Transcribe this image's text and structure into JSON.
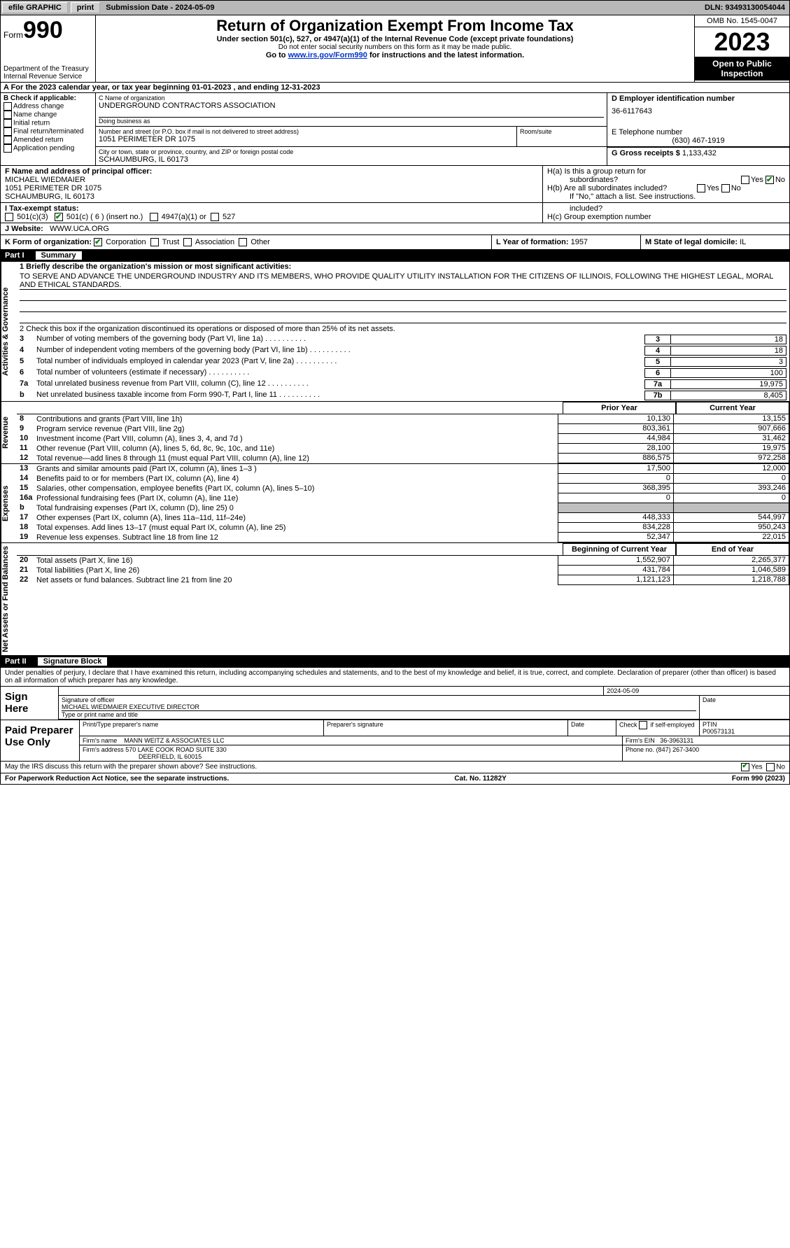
{
  "topbar": {
    "efile": "efile GRAPHIC",
    "print": "print",
    "submission": "Submission Date - 2024-05-09",
    "dln": "DLN: 93493130054044"
  },
  "header": {
    "form_prefix": "Form",
    "form_number": "990",
    "title": "Return of Organization Exempt From Income Tax",
    "subtitle": "Under section 501(c), 527, or 4947(a)(1) of the Internal Revenue Code (except private foundations)",
    "ssn_note": "Do not enter social security numbers on this form as it may be made public.",
    "goto_prefix": "Go to ",
    "goto_link": "www.irs.gov/Form990",
    "goto_suffix": " for instructions and the latest information.",
    "dept": "Department of the Treasury",
    "irs": "Internal Revenue Service",
    "omb": "OMB No. 1545-0047",
    "year": "2023",
    "inspect": "Open to Public Inspection"
  },
  "rowA": "A For the 2023 calendar year, or tax year beginning 01-01-2023   , and ending 12-31-2023",
  "boxB": {
    "label": "B Check if applicable:",
    "items": [
      "Address change",
      "Name change",
      "Initial return",
      "Final return/terminated",
      "Amended return",
      "Application pending"
    ]
  },
  "boxC": {
    "name_label": "C Name of organization",
    "name": "UNDERGROUND CONTRACTORS ASSOCIATION",
    "dba_label": "Doing business as",
    "dba": "",
    "street_label": "Number and street (or P.O. box if mail is not delivered to street address)",
    "street": "1051 PERIMETER DR 1075",
    "room_label": "Room/suite",
    "city_label": "City or town, state or province, country, and ZIP or foreign postal code",
    "city": "SCHAUMBURG, IL  60173"
  },
  "boxD": {
    "label": "D Employer identification number",
    "ein": "36-6117643"
  },
  "boxE": {
    "label": "E Telephone number",
    "phone": "(630) 467-1919"
  },
  "boxG": {
    "label": "G Gross receipts $",
    "amount": "1,133,432"
  },
  "boxF": {
    "label": "F Name and address of principal officer:",
    "name": "MICHAEL WIEDMAIER",
    "addr1": "1051 PERIMETER DR 1075",
    "addr2": "SCHAUMBURG, IL  60173"
  },
  "boxH": {
    "a": "H(a)  Is this a group return for",
    "a2": "subordinates?",
    "b": "H(b)  Are all subordinates included?",
    "bnote": "If \"No,\" attach a list. See instructions.",
    "c": "H(c)  Group exemption number",
    "yes": "Yes",
    "no": "No"
  },
  "boxI": {
    "label": "I   Tax-exempt status:",
    "opt1": "501(c)(3)",
    "opt2": "501(c) ( 6 ) (insert no.)",
    "opt3": "4947(a)(1) or",
    "opt4": "527"
  },
  "boxJ_label": "J   Website:",
  "boxJ_site": "WWW.UCA.ORG",
  "boxK": {
    "label": "K Form of organization:",
    "corp": "Corporation",
    "trust": "Trust",
    "assoc": "Association",
    "other": "Other"
  },
  "boxL": {
    "label": "L Year of formation:",
    "val": "1957"
  },
  "boxM": {
    "label": "M State of legal domicile:",
    "val": "IL"
  },
  "partI": {
    "num": "Part I",
    "title": "Summary"
  },
  "summary": {
    "vlabels": {
      "ag": "Activities & Governance",
      "rev": "Revenue",
      "exp": "Expenses",
      "net": "Net Assets or Fund Balances"
    },
    "line1_label": "1   Briefly describe the organization's mission or most significant activities:",
    "mission": "TO SERVE AND ADVANCE THE UNDERGROUND INDUSTRY AND ITS MEMBERS, WHO PROVIDE QUALITY UTILITY INSTALLATION FOR THE CITIZENS OF ILLINOIS, FOLLOWING THE HIGHEST LEGAL, MORAL AND ETHICAL STANDARDS.",
    "line2": "2   Check this box       if the organization discontinued its operations or disposed of more than 25% of its net assets.",
    "rows_ag": [
      {
        "n": "3",
        "t": "Number of voting members of the governing body (Part VI, line 1a)",
        "box": "3",
        "v": "18"
      },
      {
        "n": "4",
        "t": "Number of independent voting members of the governing body (Part VI, line 1b)",
        "box": "4",
        "v": "18"
      },
      {
        "n": "5",
        "t": "Total number of individuals employed in calendar year 2023 (Part V, line 2a)",
        "box": "5",
        "v": "3"
      },
      {
        "n": "6",
        "t": "Total number of volunteers (estimate if necessary)",
        "box": "6",
        "v": "100"
      },
      {
        "n": "7a",
        "t": "Total unrelated business revenue from Part VIII, column (C), line 12",
        "box": "7a",
        "v": "19,975"
      },
      {
        "n": "b",
        "t": "Net unrelated business taxable income from Form 990-T, Part I, line 11",
        "box": "7b",
        "v": "8,405"
      }
    ],
    "hdr_prior": "Prior Year",
    "hdr_curr": "Current Year",
    "rows_rev": [
      {
        "n": "8",
        "t": "Contributions and grants (Part VIII, line 1h)",
        "p": "10,130",
        "c": "13,155"
      },
      {
        "n": "9",
        "t": "Program service revenue (Part VIII, line 2g)",
        "p": "803,361",
        "c": "907,666"
      },
      {
        "n": "10",
        "t": "Investment income (Part VIII, column (A), lines 3, 4, and 7d )",
        "p": "44,984",
        "c": "31,462"
      },
      {
        "n": "11",
        "t": "Other revenue (Part VIII, column (A), lines 5, 6d, 8c, 9c, 10c, and 11e)",
        "p": "28,100",
        "c": "19,975"
      },
      {
        "n": "12",
        "t": "Total revenue—add lines 8 through 11 (must equal Part VIII, column (A), line 12)",
        "p": "886,575",
        "c": "972,258"
      }
    ],
    "rows_exp": [
      {
        "n": "13",
        "t": "Grants and similar amounts paid (Part IX, column (A), lines 1–3 )",
        "p": "17,500",
        "c": "12,000"
      },
      {
        "n": "14",
        "t": "Benefits paid to or for members (Part IX, column (A), line 4)",
        "p": "0",
        "c": "0"
      },
      {
        "n": "15",
        "t": "Salaries, other compensation, employee benefits (Part IX, column (A), lines 5–10)",
        "p": "368,395",
        "c": "393,246"
      },
      {
        "n": "16a",
        "t": "Professional fundraising fees (Part IX, column (A), line 11e)",
        "p": "0",
        "c": "0"
      },
      {
        "n": "b",
        "t": "Total fundraising expenses (Part IX, column (D), line 25) 0",
        "shaded": true
      },
      {
        "n": "17",
        "t": "Other expenses (Part IX, column (A), lines 11a–11d, 11f–24e)",
        "p": "448,333",
        "c": "544,997"
      },
      {
        "n": "18",
        "t": "Total expenses. Add lines 13–17 (must equal Part IX, column (A), line 25)",
        "p": "834,228",
        "c": "950,243"
      },
      {
        "n": "19",
        "t": "Revenue less expenses. Subtract line 18 from line 12",
        "p": "52,347",
        "c": "22,015"
      }
    ],
    "hdr_beg": "Beginning of Current Year",
    "hdr_end": "End of Year",
    "rows_net": [
      {
        "n": "20",
        "t": "Total assets (Part X, line 16)",
        "p": "1,552,907",
        "c": "2,265,377"
      },
      {
        "n": "21",
        "t": "Total liabilities (Part X, line 26)",
        "p": "431,784",
        "c": "1,046,589"
      },
      {
        "n": "22",
        "t": "Net assets or fund balances. Subtract line 21 from line 20",
        "p": "1,121,123",
        "c": "1,218,788"
      }
    ]
  },
  "partII": {
    "num": "Part II",
    "title": "Signature Block"
  },
  "sig": {
    "intro": "Under penalties of perjury, I declare that I have examined this return, including accompanying schedules and statements, and to the best of my knowledge and belief, it is true, correct, and complete. Declaration of preparer (other than officer) is based on all information of which preparer has any knowledge.",
    "sign_here": "Sign Here",
    "date": "2024-05-09",
    "sig_label": "Signature of officer",
    "officer": "MICHAEL WIEDMAIER  EXECUTIVE DIRECTOR",
    "type_label": "Type or print name and title",
    "date_label": "Date"
  },
  "paid": {
    "label": "Paid Preparer Use Only",
    "h1": "Print/Type preparer's name",
    "h2": "Preparer's signature",
    "h3": "Date",
    "h4_a": "Check",
    "h4_b": "if self-employed",
    "h5": "PTIN",
    "ptin": "P00573131",
    "firm_label": "Firm's name",
    "firm": "MANN WEITZ & ASSOCIATES LLC",
    "ein_label": "Firm's EIN",
    "ein": "36-3963131",
    "addr_label": "Firm's address",
    "addr1": "570 LAKE COOK ROAD SUITE 330",
    "addr2": "DEERFIELD, IL  60015",
    "phone_label": "Phone no.",
    "phone": "(847) 267-3400"
  },
  "discuss": {
    "q": "May the IRS discuss this return with the preparer shown above? See instructions.",
    "yes": "Yes",
    "no": "No"
  },
  "footer": {
    "pra": "For Paperwork Reduction Act Notice, see the separate instructions.",
    "cat": "Cat. No. 11282Y",
    "form": "Form 990 (2023)"
  }
}
